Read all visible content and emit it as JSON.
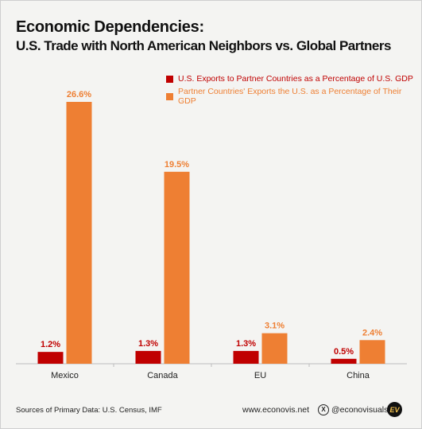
{
  "header": {
    "title": "Economic Dependencies:",
    "subtitle": "U.S. Trade with North American Neighbors vs. Global Partners"
  },
  "chart_data": {
    "type": "bar",
    "categories": [
      "Mexico",
      "Canada",
      "EU",
      "China"
    ],
    "series": [
      {
        "name": "U.S. Exports to Partner Countries as a Percentage of U.S. GDP",
        "values": [
          1.2,
          1.3,
          1.3,
          0.5
        ],
        "labels": [
          "1.2%",
          "1.3%",
          "1.3%",
          "0.5%"
        ],
        "color": "#c00000"
      },
      {
        "name": "Partner Countries' Exports the U.S. as a Percentage of Their GDP",
        "values": [
          26.6,
          19.5,
          3.1,
          2.4
        ],
        "labels": [
          "26.6%",
          "19.5%",
          "3.1%",
          "2.4%"
        ],
        "color": "#ee7f33"
      }
    ],
    "ylim": [
      0,
      27.5
    ],
    "grid": false,
    "legend": "top-right"
  },
  "footer": {
    "sources": "Sources of Primary Data: U.S. Census, IMF",
    "website": "www.econovis.net",
    "handle": "@econovisuals",
    "x_icon": "x-icon",
    "logo_text": "EV"
  }
}
